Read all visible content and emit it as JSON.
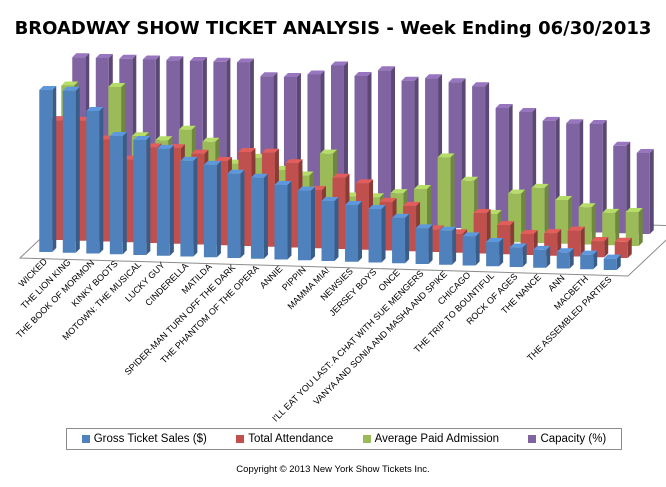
{
  "chart_data": {
    "type": "bar",
    "title": "BROADWAY SHOW TICKET ANALYSIS - Week Ending 06/30/2013",
    "categories": [
      "WICKED",
      "THE LION KING",
      "THE BOOK OF MORMON",
      "KINKY BOOTS",
      "MOTOWN: THE MUSICAL",
      "LUCKY GUY",
      "CINDERELLA",
      "MATILDA",
      "SPIDER-MAN TURN OFF THE DARK",
      "THE PHANTOM OF THE OPERA",
      "ANNIE",
      "PIPPIN",
      "MAMMA MIA!",
      "NEWSIES",
      "JERSEY BOYS",
      "ONCE",
      "I'LL EAT YOU LAST: A CHAT WITH SUE MENGERS",
      "VANYA AND SONIA AND MASHA AND SPIKE",
      "CHICAGO",
      "THE TRIP TO BOUNTIFUL",
      "ROCK OF AGES",
      "THE NANCE",
      "ANN",
      "MACBETH",
      "THE ASSEMBLED PARTIES"
    ],
    "series": [
      {
        "name": "Gross Ticket Sales ($)",
        "color": "#4f81bd",
        "values": [
          100,
          100,
          88,
          73,
          71,
          66,
          59,
          57,
          52,
          50,
          46,
          43,
          37,
          35,
          33,
          28,
          22,
          21,
          18,
          15,
          12,
          11,
          10,
          9,
          7
        ]
      },
      {
        "name": "Total Attendance",
        "color": "#c0504d",
        "values": [
          74,
          74,
          63,
          51,
          59,
          59,
          56,
          52,
          58,
          58,
          52,
          36,
          44,
          41,
          30,
          28,
          14,
          12,
          25,
          18,
          13,
          14,
          16,
          10,
          10
        ]
      },
      {
        "name": "Average Paid Admission",
        "color": "#9bbb59",
        "values": [
          88,
          54,
          88,
          58,
          56,
          63,
          56,
          43,
          47,
          40,
          37,
          51,
          25,
          25,
          28,
          31,
          51,
          37,
          17,
          30,
          34,
          27,
          23,
          20,
          21
        ]
      },
      {
        "name": "Capacity (%)",
        "color": "#8064a2",
        "values": [
          98,
          98,
          98,
          98,
          98,
          98,
          98,
          98,
          90,
          90,
          92,
          98,
          92,
          96,
          90,
          92,
          90,
          88,
          75,
          73,
          68,
          67,
          67,
          54,
          50
        ]
      }
    ]
  },
  "legend": {
    "items": [
      {
        "label": "Gross Ticket Sales ($)",
        "color": "#4f81bd"
      },
      {
        "label": "Total Attendance",
        "color": "#c0504d"
      },
      {
        "label": "Average Paid Admission",
        "color": "#9bbb59"
      },
      {
        "label": "Capacity (%)",
        "color": "#8064a2"
      }
    ]
  },
  "footer": {
    "copyright": "Copyright © 2013 New York Show Tickets Inc."
  }
}
